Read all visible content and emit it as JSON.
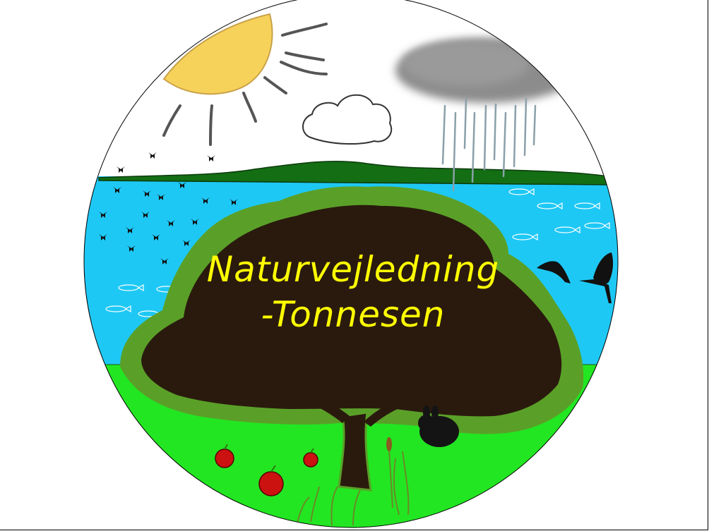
{
  "logo": {
    "title_line1": "Naturvejledning",
    "title_line2": "-Tonnesen"
  },
  "icons": {
    "sun": "sun-icon",
    "cloud": "cloud-icon",
    "rain_cloud": "rain-cloud-icon",
    "tree": "apple-tree-icon",
    "rabbit": "rabbit-icon",
    "birds": "bird-flock-icon",
    "herons": "heron-icon",
    "fish": "fish-school-icon",
    "apples": "apple-icon",
    "reeds": "reed-icon"
  },
  "colors": {
    "sky": "#ffffff",
    "water": "#1ec8f5",
    "hill": "#146e14",
    "grass": "#22e622",
    "leaves": "#5aa028",
    "trunk": "#2a1a0e",
    "sun": "#f7d25a",
    "title": "#ffff00"
  }
}
